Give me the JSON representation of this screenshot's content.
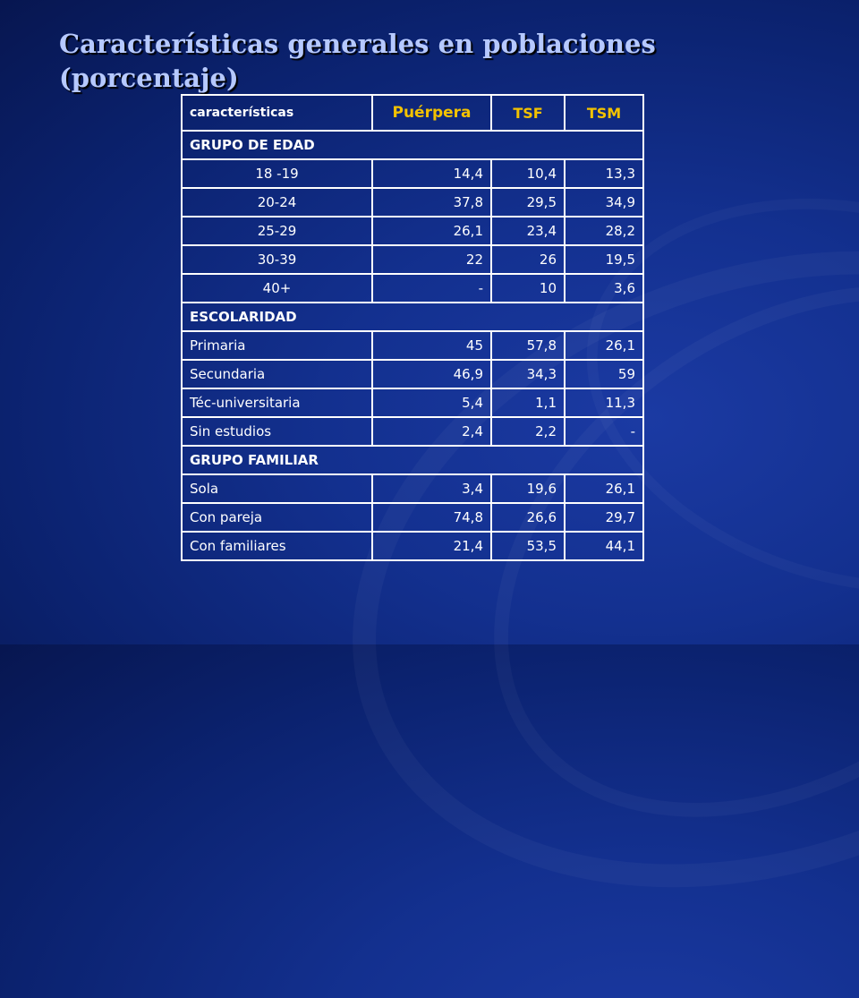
{
  "title": {
    "line1": "Características generales en poblaciones",
    "line2": "(porcentaje)"
  },
  "table": {
    "headers": [
      "características",
      "Puérpera",
      "TSF",
      "TSM"
    ],
    "sections": [
      {
        "name": "GRUPO DE EDAD",
        "rows": [
          {
            "label": "18 -19",
            "values": [
              "14,4",
              "10,4",
              "13,3"
            ]
          },
          {
            "label": "20-24",
            "values": [
              "37,8",
              "29,5",
              "34,9"
            ]
          },
          {
            "label": "25-29",
            "values": [
              "26,1",
              "23,4",
              "28,2"
            ]
          },
          {
            "label": "30-39",
            "values": [
              "22",
              "26",
              "19,5"
            ]
          },
          {
            "label": "40+",
            "values": [
              "-",
              "10",
              "3,6"
            ]
          }
        ]
      },
      {
        "name": "ESCOLARIDAD",
        "rows": [
          {
            "label": "Primaria",
            "values": [
              "45",
              "57,8",
              "26,1"
            ]
          },
          {
            "label": "Secundaria",
            "values": [
              "46,9",
              "34,3",
              "59"
            ]
          },
          {
            "label": "Téc-universitaria",
            "values": [
              "5,4",
              "1,1",
              "11,3"
            ]
          },
          {
            "label": "Sin estudios",
            "values": [
              "2,4",
              "2,2",
              "-"
            ]
          }
        ]
      },
      {
        "name": "GRUPO FAMILIAR",
        "rows": [
          {
            "label": "Sola",
            "values": [
              "3,4",
              "19,6",
              "26,1"
            ]
          },
          {
            "label": "Con pareja",
            "values": [
              "74,8",
              "26,6",
              "29,7"
            ]
          },
          {
            "label": "Con familiares",
            "values": [
              "21,4",
              "53,5",
              "44,1"
            ]
          }
        ]
      }
    ]
  }
}
